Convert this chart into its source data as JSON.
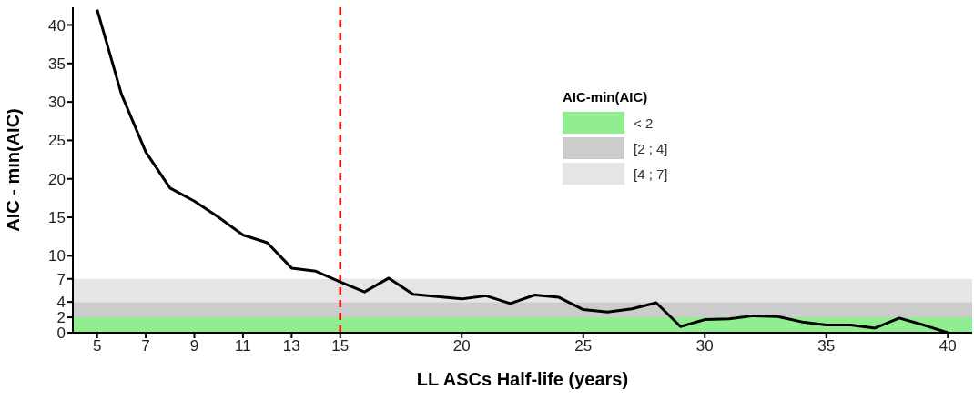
{
  "chart_data": {
    "type": "line",
    "xlabel": "LL ASCs Half-life (years)",
    "ylabel": "AIC - min(AIC)",
    "legend_title": "AIC-min(AIC)",
    "legend": "top right",
    "grid": false,
    "marker": "none",
    "line_style": "solid",
    "x": [
      5,
      6,
      7,
      8,
      9,
      10,
      11,
      12,
      13,
      14,
      15,
      16,
      17,
      18,
      19,
      20,
      21,
      22,
      23,
      24,
      25,
      26,
      27,
      28,
      29,
      30,
      31,
      32,
      33,
      34,
      35,
      36,
      37,
      38,
      39,
      40
    ],
    "series": [
      {
        "color": "#000000",
        "values": [
          42,
          31,
          23.5,
          18.8,
          17.1,
          15,
          12.7,
          11.7,
          8.4,
          8,
          6.6,
          5.3,
          7.1,
          5,
          4.7,
          4.4,
          4.8,
          3.8,
          4.9,
          4.6,
          3,
          2.7,
          3.1,
          3.9,
          0.8,
          1.7,
          1.8,
          2.2,
          2.1,
          1.4,
          1,
          1,
          0.6,
          1.9,
          1,
          0
        ]
      }
    ],
    "xlim": [
      4,
      41
    ],
    "ylim": [
      0,
      42.3
    ],
    "xticks": [
      5,
      7,
      9,
      11,
      13,
      15,
      20,
      25,
      30,
      35,
      40
    ],
    "yticks": [
      0,
      2,
      4,
      7,
      10,
      15,
      20,
      25,
      30,
      35,
      40
    ],
    "bands": [
      {
        "axis": "y",
        "from": 0,
        "to": 2,
        "label": "< 2",
        "color": "#90ee90"
      },
      {
        "axis": "y",
        "from": 2,
        "to": 4,
        "label": "[2 ; 4]",
        "color": "#cccccc"
      },
      {
        "axis": "y",
        "from": 4,
        "to": 7,
        "label": "[4 ; 7]",
        "color": "#e5e5e5"
      }
    ],
    "ref_lines": [
      {
        "axis": "x",
        "value": 15,
        "color": "#ff0000",
        "line_style": "dashed"
      }
    ]
  }
}
